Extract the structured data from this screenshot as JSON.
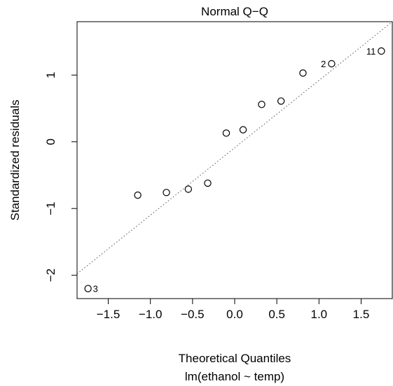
{
  "chart_data": {
    "type": "scatter",
    "title": "Normal Q−Q",
    "xlabel": "Theoretical Quantiles",
    "sublabel": "lm(ethanol ~ temp)",
    "ylabel": "Standardized residuals",
    "x_ticks": [
      -1.5,
      -1.0,
      -0.5,
      0.0,
      0.5,
      1.0,
      1.5
    ],
    "x_tick_labels": [
      "−1.5",
      "−1.0",
      "−0.5",
      "0.0",
      "0.5",
      "1.0",
      "1.5"
    ],
    "y_ticks": [
      -2,
      -1,
      0,
      1
    ],
    "y_tick_labels": [
      "−2",
      "−1",
      "0",
      "1"
    ],
    "xlim": [
      -1.87,
      1.87
    ],
    "ylim": [
      -2.35,
      1.8
    ],
    "grid": false,
    "points": [
      {
        "x": -1.74,
        "y": -2.2,
        "label": "3"
      },
      {
        "x": -1.15,
        "y": -0.8,
        "label": ""
      },
      {
        "x": -0.81,
        "y": -0.76,
        "label": ""
      },
      {
        "x": -0.55,
        "y": -0.71,
        "label": ""
      },
      {
        "x": -0.32,
        "y": -0.62,
        "label": ""
      },
      {
        "x": -0.1,
        "y": 0.13,
        "label": ""
      },
      {
        "x": 0.1,
        "y": 0.18,
        "label": ""
      },
      {
        "x": 0.32,
        "y": 0.56,
        "label": ""
      },
      {
        "x": 0.55,
        "y": 0.61,
        "label": ""
      },
      {
        "x": 0.81,
        "y": 1.03,
        "label": ""
      },
      {
        "x": 1.15,
        "y": 1.17,
        "label": "2"
      },
      {
        "x": 1.74,
        "y": 1.36,
        "label": "11"
      }
    ],
    "reference_line": {
      "style": "dotted",
      "color": "#555555",
      "slope": 1.01,
      "intercept": -0.09
    }
  }
}
